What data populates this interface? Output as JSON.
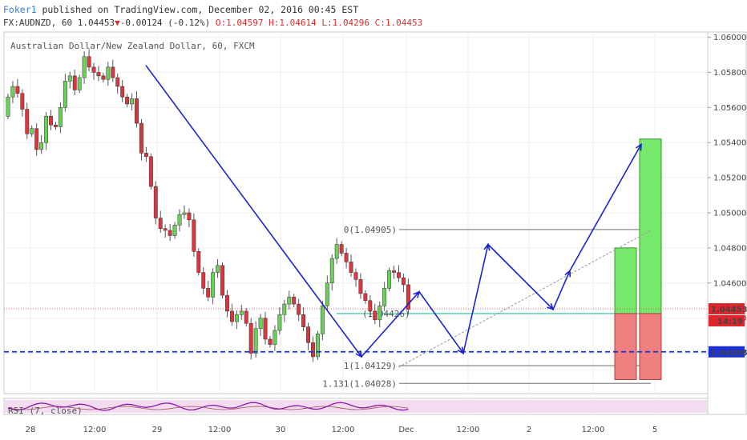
{
  "header": {
    "user": "Foker1",
    "published": " published on TradingView.com, December 02, 2016 00:45 EST",
    "symbol": "FX:AUDNZD, 60 1.04453",
    "change_arrow": "▼",
    "change": "-0.00124 (-0.12%)",
    "ohlc": " O:1.04597 H:1.04614 L:1.04296 C:1.04453"
  },
  "chart_data": {
    "type": "candlestick",
    "title": "Australian Dollar/New Zealand Dollar, 60, FXCM",
    "y_ticks": [
      "1.06000",
      "1.05800",
      "1.05600",
      "1.05400",
      "1.05200",
      "1.05000",
      "1.04800",
      "1.04600",
      "1.04400",
      "1.04200"
    ],
    "ylim": [
      1.0397,
      1.0603
    ],
    "x_ticks": [
      "28",
      "12:00",
      "29",
      "12:00",
      "30",
      "12:00",
      "Dec",
      "12:00",
      "2",
      "12:00",
      "5"
    ],
    "last_price": "1.04453",
    "countdown": "14:19",
    "support_level": "1.04208",
    "support_value": 1.04208,
    "fib_levels": [
      {
        "label": "0(1.04905)",
        "value": 1.04905
      },
      {
        "label": "(1.04426)",
        "value": 1.04426
      },
      {
        "label": "1(1.04129)",
        "value": 1.04129
      },
      {
        "label": "1.131(1.04028)",
        "value": 1.04028
      }
    ],
    "pattern_path": [
      1.0584,
      1.0418,
      1.0455,
      1.042,
      1.0482,
      1.0445,
      1.0467,
      1.0539
    ],
    "trend_line": [
      1.0412,
      1.049
    ],
    "trade_boxes": [
      {
        "target": 1.048,
        "entry": 1.04426,
        "stop": 1.0405
      },
      {
        "target": 1.0542,
        "entry": 1.04426,
        "stop": 1.0405
      }
    ],
    "candles_close": [
      1.0566,
      1.0572,
      1.0568,
      1.0559,
      1.0545,
      1.0548,
      1.0536,
      1.054,
      1.0555,
      1.055,
      1.0549,
      1.056,
      1.0575,
      1.0578,
      1.057,
      1.0577,
      1.0589,
      1.0583,
      1.058,
      1.0578,
      1.0576,
      1.0583,
      1.0577,
      1.0572,
      1.0566,
      1.0562,
      1.0565,
      1.0551,
      1.0534,
      1.0532,
      1.0515,
      1.0497,
      1.0491,
      1.049,
      1.0487,
      1.0493,
      1.0499,
      1.05,
      1.0496,
      1.0478,
      1.0466,
      1.0457,
      1.0452,
      1.0466,
      1.047,
      1.0453,
      1.0444,
      1.0438,
      1.0442,
      1.0444,
      1.0437,
      1.042,
      1.0434,
      1.044,
      1.0428,
      1.0425,
      1.0433,
      1.0442,
      1.0448,
      1.0452,
      1.0448,
      1.0442,
      1.0435,
      1.0426,
      1.0418,
      1.0431,
      1.0447,
      1.046,
      1.0474,
      1.0482,
      1.0477,
      1.0472,
      1.0466,
      1.0462,
      1.0454,
      1.045,
      1.0444,
      1.0439,
      1.0447,
      1.0457,
      1.0467,
      1.0466,
      1.0463,
      1.0459,
      1.0445
    ],
    "rsi_label": "RSI (7, close)"
  }
}
